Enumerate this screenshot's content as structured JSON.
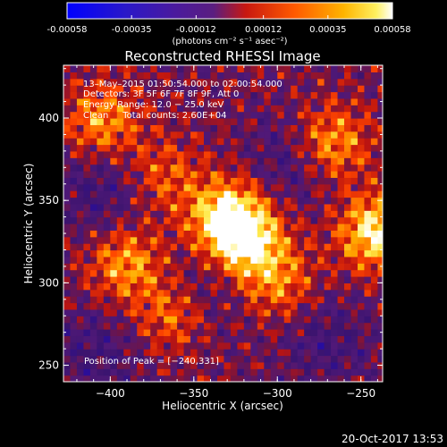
{
  "colorbar": {
    "ticks": [
      "-0.00058",
      "-0.00035",
      "-0.00012",
      "0.00012",
      "0.00035",
      "0.00058"
    ],
    "units": "(photons cm⁻² s⁻¹ asec⁻²)",
    "range": [
      -0.00058,
      0.00058
    ]
  },
  "chart_data": {
    "type": "heatmap",
    "title": "Reconstructed RHESSI Image",
    "xlabel": "Heliocentric X (arcsec)",
    "ylabel": "Heliocentric Y (arcsec)",
    "xlim": [
      -428,
      -237
    ],
    "ylim": [
      240,
      432
    ],
    "xticks": [
      -400,
      -350,
      -300,
      -250
    ],
    "yticks": [
      250,
      300,
      350,
      400
    ],
    "xtick_labels": [
      "−400",
      "−350",
      "−300",
      "−250"
    ],
    "ytick_labels": [
      "250",
      "300",
      "350",
      "400"
    ],
    "colormap": "rhessi (blue-purple-red-orange-yellow-white)",
    "annotations": [
      "13–May–2015 01:50:54.000 to 02:00:54.000",
      "Detectors: 3F 5F 6F 7F 8F 9F, Att 0",
      "Energy Range: 12.0 − 25.0 keV",
      "Clean     Total counts: 2.60E+04"
    ],
    "peak_label": "Position of Peak = [−240,331]",
    "peak": [
      -240,
      331
    ],
    "bright_sources": [
      {
        "x": -330,
        "y": 340,
        "value": 0.00058
      },
      {
        "x": -318,
        "y": 325,
        "value": 0.0005
      },
      {
        "x": -240,
        "y": 331,
        "value": 0.00058
      },
      {
        "x": -268,
        "y": 385,
        "value": 0.00045
      },
      {
        "x": -405,
        "y": 398,
        "value": 0.0004
      },
      {
        "x": -390,
        "y": 312,
        "value": 0.00042
      },
      {
        "x": -300,
        "y": 300,
        "value": 0.00035
      },
      {
        "x": -362,
        "y": 282,
        "value": 0.0004
      },
      {
        "x": -368,
        "y": 365,
        "value": 0.0003
      }
    ],
    "dark_regions": [
      {
        "x": -348,
        "y": 293,
        "value": -0.00012
      },
      {
        "x": -405,
        "y": 355,
        "value": -0.00012
      },
      {
        "x": -290,
        "y": 375,
        "value": -0.00012
      },
      {
        "x": -270,
        "y": 265,
        "value": -0.0001
      },
      {
        "x": -410,
        "y": 258,
        "value": -0.0001
      }
    ]
  },
  "footer": {
    "timestamp": "20-Oct-2017 13:53"
  }
}
